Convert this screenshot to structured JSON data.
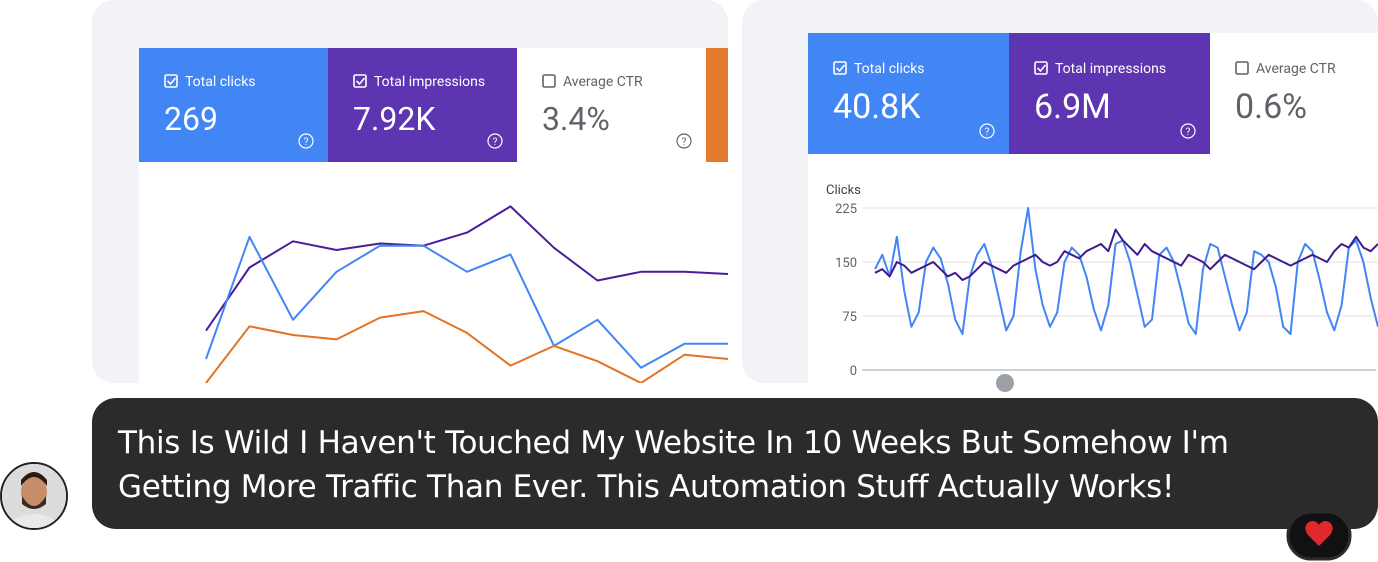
{
  "chart_data": [
    {
      "type": "line",
      "metrics": [
        {
          "label": "Total clicks",
          "value": "269",
          "checked": true,
          "color": "#4285f4"
        },
        {
          "label": "Total impressions",
          "value": "7.92K",
          "checked": true,
          "color": "#5e35b1"
        },
        {
          "label": "Average CTR",
          "value": "3.4%",
          "checked": false,
          "color": "#ffffff"
        }
      ],
      "ylim": [
        0,
        100
      ],
      "series": [
        {
          "color": "#4b1d9e",
          "values": [
            24,
            53,
            65,
            61,
            64,
            63,
            69,
            81,
            62,
            47,
            51,
            51,
            50
          ]
        },
        {
          "color": "#4285f4",
          "values": [
            11,
            67,
            29,
            51,
            63,
            63,
            51,
            59,
            17,
            29,
            7,
            18,
            18
          ]
        },
        {
          "color": "#e37222",
          "values": [
            0,
            26,
            22,
            20,
            30,
            33,
            23,
            8,
            17,
            10,
            0,
            13,
            11
          ]
        }
      ]
    },
    {
      "type": "line",
      "metrics": [
        {
          "label": "Total clicks",
          "value": "40.8K",
          "checked": true,
          "color": "#4285f4"
        },
        {
          "label": "Total impressions",
          "value": "6.9M",
          "checked": true,
          "color": "#5e35b1"
        },
        {
          "label": "Average CTR",
          "value": "0.6%",
          "checked": false,
          "color": "#ffffff"
        }
      ],
      "y_label": "Clicks",
      "ylim": [
        0,
        225
      ],
      "yticks": [
        0,
        75,
        150,
        225
      ],
      "grid": true,
      "series": [
        {
          "color": "#4285f4",
          "values": [
            140,
            160,
            130,
            185,
            110,
            60,
            80,
            150,
            170,
            155,
            120,
            70,
            50,
            130,
            160,
            175,
            145,
            100,
            55,
            75,
            165,
            225,
            140,
            90,
            60,
            80,
            150,
            170,
            160,
            130,
            85,
            55,
            90,
            175,
            180,
            150,
            105,
            60,
            70,
            160,
            170,
            150,
            110,
            65,
            50,
            140,
            175,
            170,
            130,
            90,
            55,
            80,
            165,
            160,
            150,
            115,
            60,
            50,
            150,
            175,
            165,
            125,
            80,
            55,
            90,
            170,
            180,
            150,
            100,
            60
          ]
        },
        {
          "color": "#3d1a8e",
          "values": [
            135,
            140,
            130,
            150,
            145,
            135,
            140,
            145,
            150,
            140,
            130,
            135,
            125,
            130,
            140,
            150,
            145,
            140,
            135,
            145,
            150,
            155,
            160,
            150,
            145,
            150,
            165,
            160,
            155,
            165,
            170,
            175,
            165,
            195,
            180,
            170,
            160,
            175,
            165,
            160,
            155,
            150,
            145,
            160,
            155,
            150,
            140,
            150,
            160,
            155,
            150,
            145,
            140,
            150,
            160,
            155,
            150,
            145,
            150,
            155,
            160,
            155,
            150,
            165,
            175,
            170,
            185,
            170,
            165,
            175
          ]
        }
      ]
    }
  ],
  "message": {
    "text": "This Is Wild I Haven't Touched My Website In 10 Weeks But Somehow I'm Getting More Traffic Than Ever. This Automation Stuff Actually Works!"
  }
}
